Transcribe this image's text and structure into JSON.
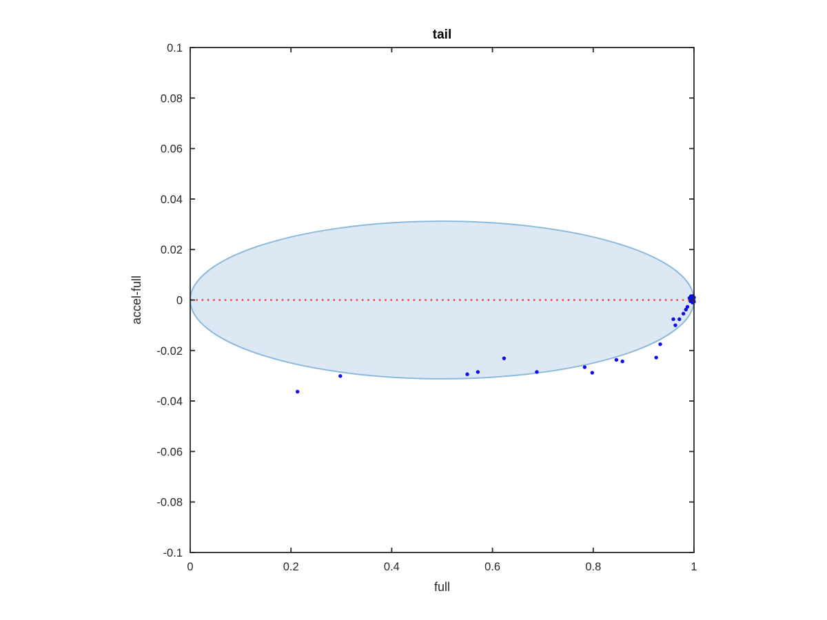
{
  "figure": {
    "background": "#ffffff",
    "axis_color": "#262626",
    "tick_label_color": "#262626"
  },
  "chart_data": {
    "type": "scatter",
    "title": "tail",
    "xlabel": "full",
    "ylabel": "accel-full",
    "xlim": [
      0,
      1
    ],
    "ylim": [
      -0.1,
      0.1
    ],
    "grid": false,
    "box": true,
    "legend": "none",
    "x_ticks": {
      "values": [
        0,
        0.2,
        0.4,
        0.6,
        0.8,
        1
      ],
      "labels": [
        "0",
        "0.2",
        "0.4",
        "0.6",
        "0.8",
        "1"
      ]
    },
    "y_ticks": {
      "values": [
        -0.1,
        -0.08,
        -0.06,
        -0.04,
        -0.02,
        0,
        0.02,
        0.04,
        0.06,
        0.08,
        0.1
      ],
      "labels": [
        "-0.1",
        "-0.08",
        "-0.06",
        "-0.04",
        "-0.02",
        "0",
        "0.02",
        "0.04",
        "0.06",
        "0.08",
        "0.1"
      ]
    },
    "ellipse": {
      "center": [
        0.5,
        0
      ],
      "rx": 0.5,
      "ry": 0.0312,
      "fill": "#dce9f5",
      "stroke": "#8cb9da",
      "stroke_width": 2
    },
    "reference_line": {
      "y": 0,
      "x_start": 0,
      "x_end": 1,
      "style": "dotted",
      "color": "#ee3b3b",
      "width": 2.4
    },
    "series": [
      {
        "name": "accel-full-difference-samples",
        "marker": "point",
        "color": "#0d0df0",
        "marker_radius": 2.7,
        "points": [
          [
            0.213,
            -0.0363
          ],
          [
            0.298,
            -0.0301
          ],
          [
            0.55,
            -0.0294
          ],
          [
            0.571,
            -0.0285
          ],
          [
            0.623,
            -0.0231
          ],
          [
            0.688,
            -0.0285
          ],
          [
            0.783,
            -0.0266
          ],
          [
            0.798,
            -0.0288
          ],
          [
            0.846,
            -0.0237
          ],
          [
            0.858,
            -0.0243
          ],
          [
            0.925,
            -0.0228
          ],
          [
            0.933,
            -0.0175
          ],
          [
            0.959,
            -0.0076
          ],
          [
            0.963,
            -0.01
          ],
          [
            0.971,
            -0.0076
          ],
          [
            0.979,
            -0.0054
          ],
          [
            0.984,
            -0.0038
          ],
          [
            0.987,
            -0.0027
          ],
          [
            0.991,
            0.0008
          ],
          [
            0.993,
            -0.0005
          ],
          [
            0.994,
            0.0015
          ],
          [
            0.996,
            0.0004
          ],
          [
            0.997,
            -0.001
          ],
          [
            0.998,
            0.0016
          ],
          [
            0.999,
            0.0
          ],
          [
            1.0,
            0.001
          ],
          [
            1.0,
            -0.0007
          ]
        ]
      }
    ]
  }
}
